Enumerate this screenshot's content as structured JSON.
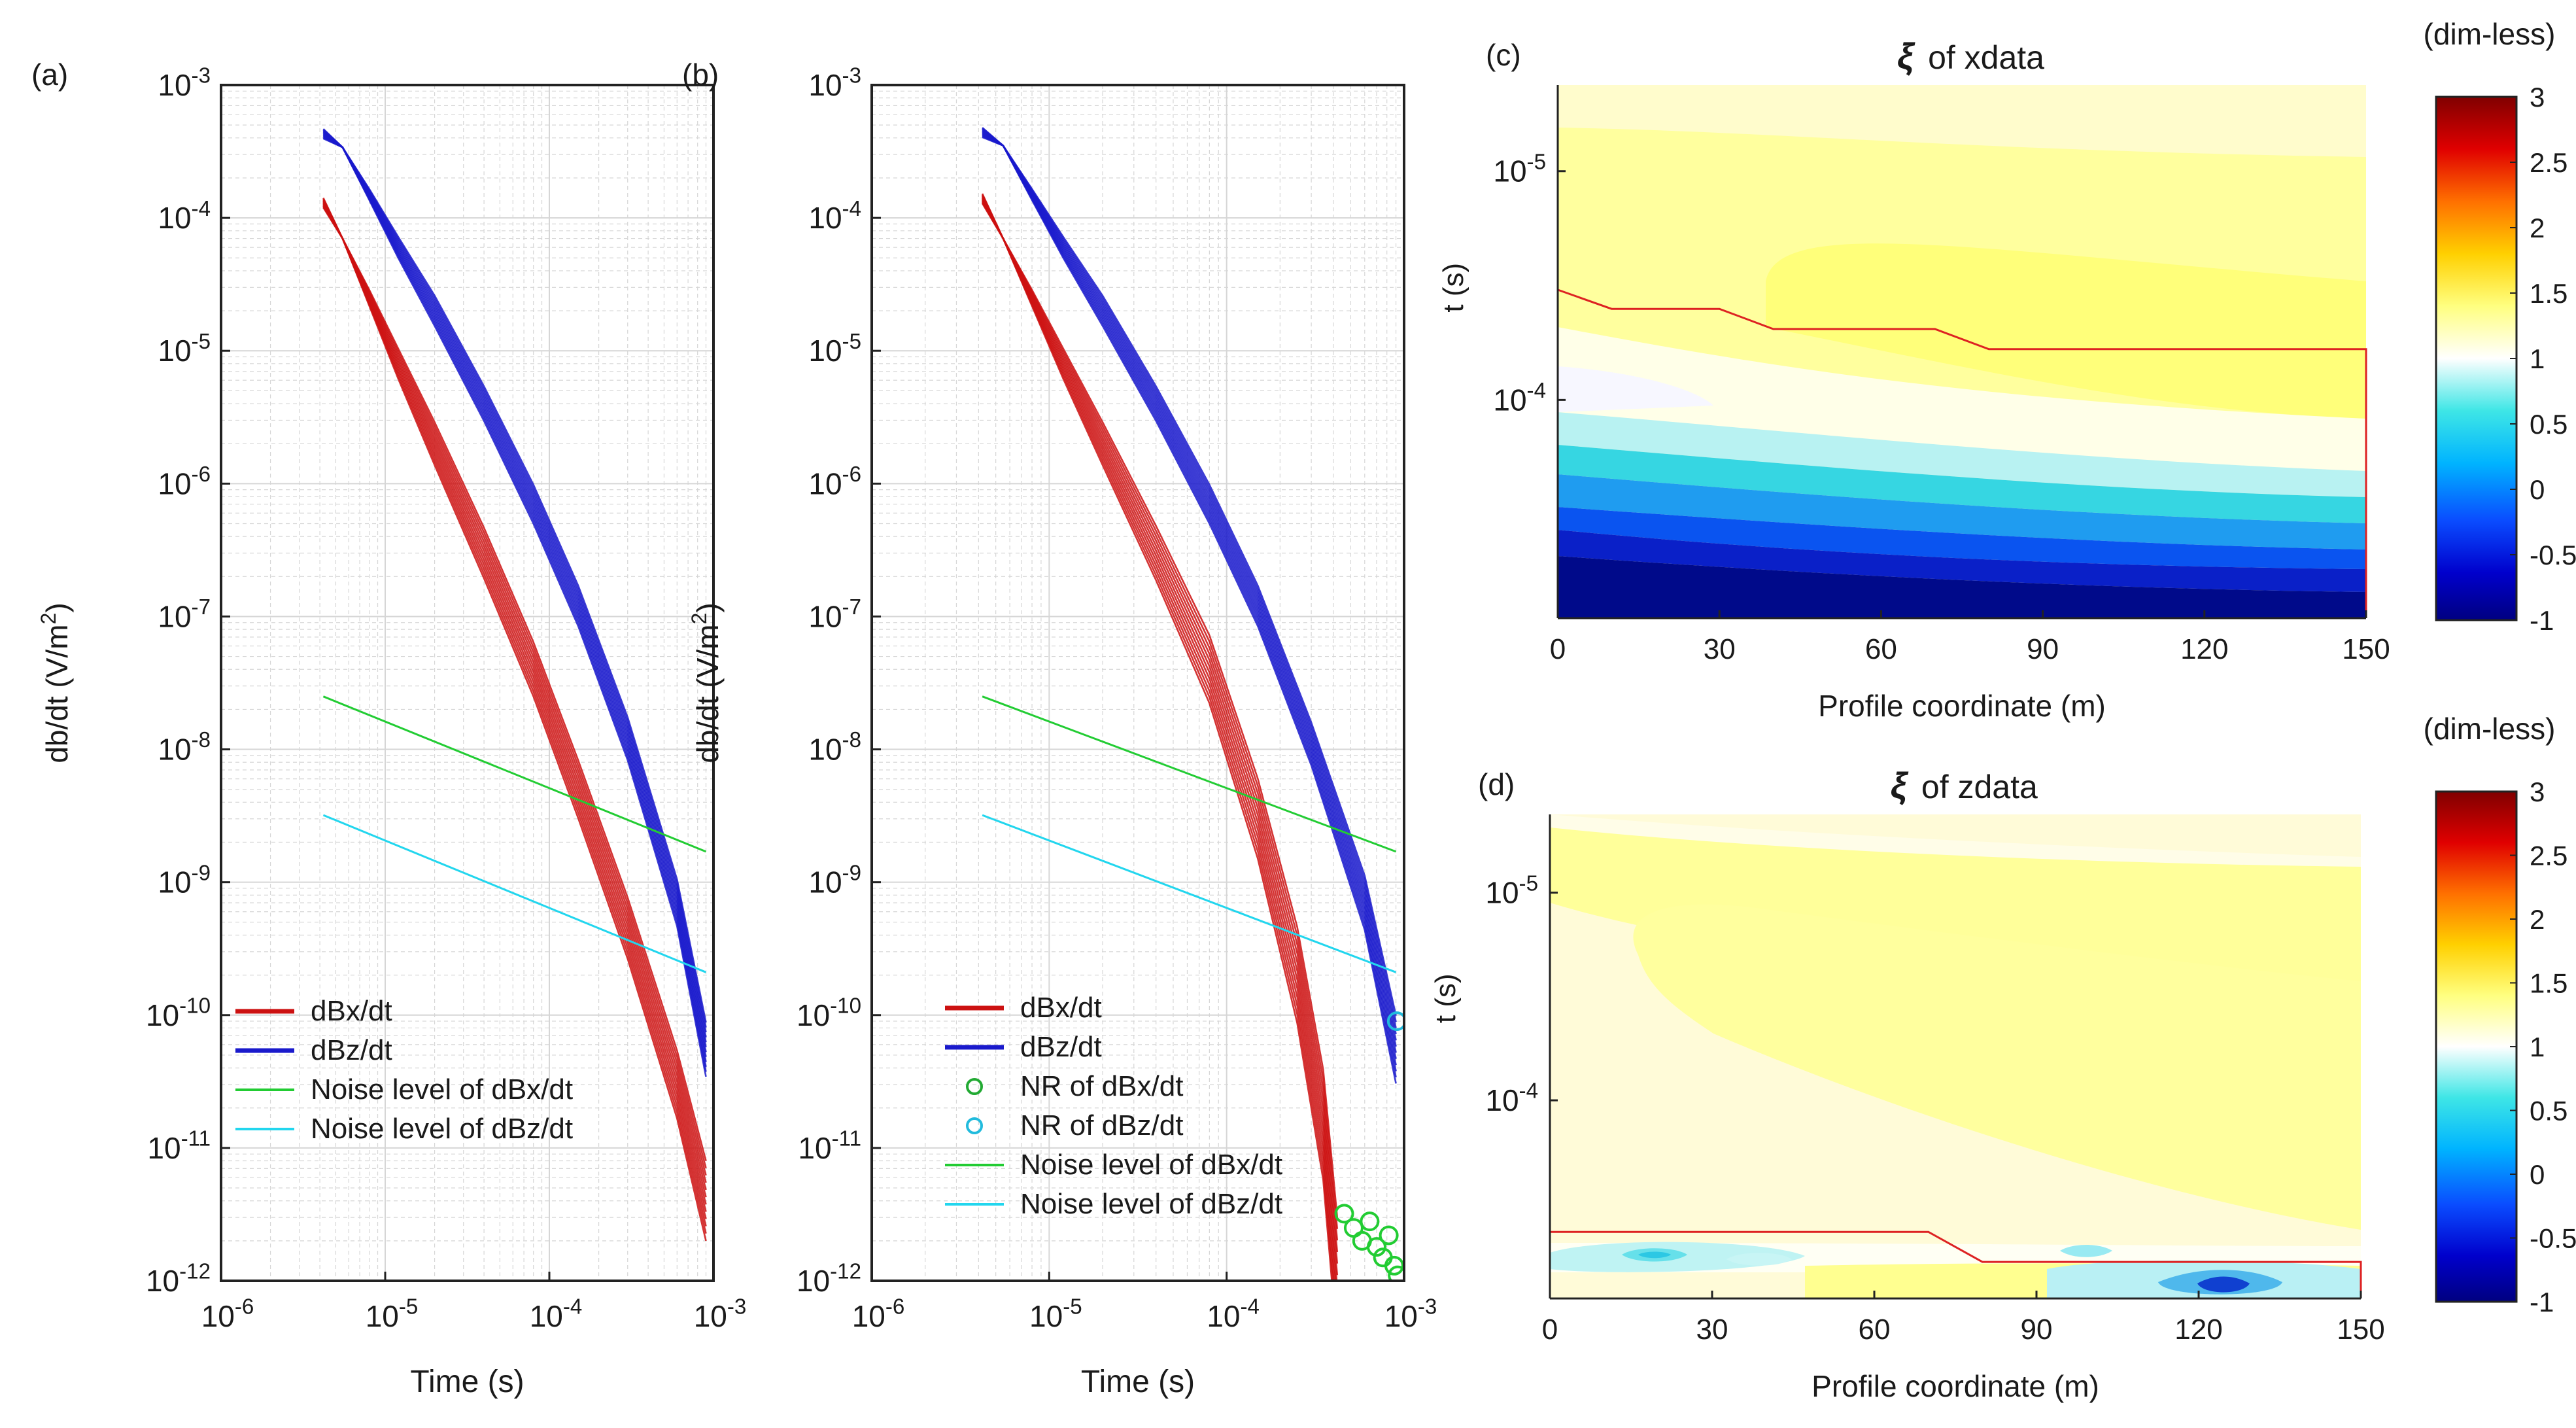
{
  "chart_data": [
    {
      "type": "line",
      "panel_label": "(a)",
      "xscale": "log",
      "yscale": "log",
      "xlim": [
        1e-06,
        0.001
      ],
      "ylim": [
        1e-12,
        0.001
      ],
      "xlabel": "Time (s)",
      "ylabel_main": "db/dt (V/m",
      "ylabel_sup": "2",
      "ylabel_end": ")",
      "x_ticks": [
        {
          "base": "10",
          "exp": "-6"
        },
        {
          "base": "10",
          "exp": "-5"
        },
        {
          "base": "10",
          "exp": "-4"
        },
        {
          "base": "10",
          "exp": "-3"
        }
      ],
      "y_ticks": [
        {
          "base": "10",
          "exp": "-12"
        },
        {
          "base": "10",
          "exp": "-11"
        },
        {
          "base": "10",
          "exp": "-10"
        },
        {
          "base": "10",
          "exp": "-9"
        },
        {
          "base": "10",
          "exp": "-8"
        },
        {
          "base": "10",
          "exp": "-7"
        },
        {
          "base": "10",
          "exp": "-6"
        },
        {
          "base": "10",
          "exp": "-5"
        },
        {
          "base": "10",
          "exp": "-4"
        },
        {
          "base": "10",
          "exp": "-3"
        }
      ],
      "grid": true,
      "series": [
        {
          "name": "dBx/dt",
          "kind": "bundle",
          "color": "#cc1111",
          "count": 12,
          "x": [
            4.2e-06,
            5.5e-06,
            8e-06,
            1.2e-05,
            2e-05,
            4e-05,
            8e-05,
            0.00015,
            0.0003,
            0.0006,
            0.0009
          ],
          "y": [
            0.00013,
            7e-05,
            2.5e-05,
            8e-06,
            2e-06,
            3e-07,
            4e-08,
            5e-09,
            4.5e-10,
            3e-11,
            4e-12
          ],
          "spread": [
            0.92,
            1.0,
            1.15,
            1.3,
            1.45,
            1.55,
            1.6,
            1.65,
            1.7,
            1.8,
            2.0
          ]
        },
        {
          "name": "dBz/dt",
          "kind": "bundle",
          "color": "#1a1acc",
          "count": 12,
          "x": [
            4.2e-06,
            5.5e-06,
            8e-06,
            1.2e-05,
            2e-05,
            4e-05,
            8e-05,
            0.00015,
            0.0003,
            0.0006,
            0.0009
          ],
          "y": [
            0.00043,
            0.00034,
            0.00015,
            6e-05,
            2e-05,
            4e-06,
            7e-07,
            1.2e-07,
            1.2e-08,
            7e-10,
            5.5e-11
          ],
          "spread": [
            0.92,
            1.0,
            1.1,
            1.2,
            1.3,
            1.35,
            1.4,
            1.42,
            1.45,
            1.5,
            1.6
          ]
        },
        {
          "name": "Noise level of dBx/dt",
          "kind": "line",
          "color": "#22cc33",
          "x": [
            4.2e-06,
            0.0009
          ],
          "y": [
            2.5e-08,
            1.7e-09
          ]
        },
        {
          "name": "Noise level of dBz/dt",
          "kind": "line",
          "color": "#22d6ee",
          "x": [
            4.2e-06,
            0.0009
          ],
          "y": [
            3.2e-09,
            2.1e-10
          ]
        }
      ],
      "legend": [
        {
          "label": "dBx/dt",
          "color": "#cc1111",
          "marker": "line"
        },
        {
          "label": "dBz/dt",
          "color": "#1a1acc",
          "marker": "line"
        },
        {
          "label": "Noise level of dBx/dt",
          "color": "#22cc33",
          "marker": "thin"
        },
        {
          "label": "Noise level of dBz/dt",
          "color": "#22d6ee",
          "marker": "thin"
        }
      ]
    },
    {
      "type": "line",
      "panel_label": "(b)",
      "xscale": "log",
      "yscale": "log",
      "xlim": [
        1e-06,
        0.001
      ],
      "ylim": [
        1e-12,
        0.001
      ],
      "xlabel": "Time (s)",
      "ylabel_main": "db/dt (V/m",
      "ylabel_sup": "2",
      "ylabel_end": ")",
      "x_ticks": [
        {
          "base": "10",
          "exp": "-6"
        },
        {
          "base": "10",
          "exp": "-5"
        },
        {
          "base": "10",
          "exp": "-4"
        },
        {
          "base": "10",
          "exp": "-3"
        }
      ],
      "y_ticks": [
        {
          "base": "10",
          "exp": "-12"
        },
        {
          "base": "10",
          "exp": "-11"
        },
        {
          "base": "10",
          "exp": "-10"
        },
        {
          "base": "10",
          "exp": "-9"
        },
        {
          "base": "10",
          "exp": "-8"
        },
        {
          "base": "10",
          "exp": "-7"
        },
        {
          "base": "10",
          "exp": "-6"
        },
        {
          "base": "10",
          "exp": "-5"
        },
        {
          "base": "10",
          "exp": "-4"
        },
        {
          "base": "10",
          "exp": "-3"
        }
      ],
      "grid": true,
      "series": [
        {
          "name": "dBx/dt",
          "kind": "bundle",
          "color": "#cc1111",
          "count": 12,
          "x": [
            4.2e-06,
            5.5e-06,
            8e-06,
            1.2e-05,
            2e-05,
            4e-05,
            8e-05,
            0.00015,
            0.00025,
            0.00035,
            0.00042
          ],
          "y": [
            0.00014,
            7e-05,
            2.5e-05,
            8e-06,
            2e-06,
            3e-07,
            4e-08,
            3e-09,
            2e-10,
            1.5e-11,
            1e-12
          ],
          "spread": [
            0.92,
            1.0,
            1.15,
            1.3,
            1.45,
            1.6,
            1.8,
            2.0,
            2.3,
            2.6,
            3.0
          ]
        },
        {
          "name": "dBz/dt",
          "kind": "bundle",
          "color": "#1a1acc",
          "count": 12,
          "x": [
            4.2e-06,
            5.5e-06,
            8e-06,
            1.2e-05,
            2e-05,
            4e-05,
            8e-05,
            0.00015,
            0.0003,
            0.0006,
            0.0009
          ],
          "y": [
            0.00044,
            0.00035,
            0.00015,
            6e-05,
            2e-05,
            4e-06,
            7e-07,
            1.2e-07,
            1.1e-08,
            7e-10,
            5.5e-11
          ],
          "spread": [
            0.92,
            1.0,
            1.1,
            1.2,
            1.3,
            1.35,
            1.4,
            1.42,
            1.45,
            1.6,
            1.8
          ]
        },
        {
          "name": "Noise level of dBx/dt",
          "kind": "line",
          "color": "#22cc33",
          "x": [
            4.2e-06,
            0.0009
          ],
          "y": [
            2.5e-08,
            1.7e-09
          ]
        },
        {
          "name": "Noise level of dBz/dt",
          "kind": "line",
          "color": "#22d6ee",
          "x": [
            4.2e-06,
            0.0009
          ],
          "y": [
            3.2e-09,
            2.1e-10
          ]
        },
        {
          "name": "NR of dBx/dt",
          "kind": "markers",
          "color": "#22cc33",
          "x": [
            0.00046,
            0.00052,
            0.00058,
            0.00064,
            0.0007,
            0.00076,
            0.00082,
            0.00088,
            0.00092
          ],
          "y": [
            3.2e-12,
            2.5e-12,
            2e-12,
            2.8e-12,
            1.8e-12,
            1.5e-12,
            2.2e-12,
            1.3e-12,
            1.1e-12
          ]
        },
        {
          "name": "NR of dBz/dt",
          "kind": "markers",
          "color": "#22bbdd",
          "x": [
            0.00091
          ],
          "y": [
            9e-11
          ]
        }
      ],
      "legend": [
        {
          "label": "dBx/dt",
          "color": "#cc1111",
          "marker": "line"
        },
        {
          "label": "dBz/dt",
          "color": "#1a1acc",
          "marker": "line"
        },
        {
          "label": "NR of dBx/dt",
          "color": "#22aa33",
          "marker": "circle"
        },
        {
          "label": "NR of dBz/dt",
          "color": "#22bbdd",
          "marker": "circle"
        },
        {
          "label": "Noise level of dBx/dt",
          "color": "#22cc33",
          "marker": "thin"
        },
        {
          "label": "Noise level of dBz/dt",
          "color": "#22d6ee",
          "marker": "thin"
        }
      ]
    },
    {
      "type": "heatmap",
      "panel_label": "(c)",
      "title_symbol": "ξ",
      "title_text": "of xdata",
      "xlabel": "Profile coordinate (m)",
      "ylabel": "t (s)",
      "xlim": [
        0,
        150
      ],
      "ylim_log_seconds": [
        4.2e-06,
        0.0009
      ],
      "y_reversed": true,
      "x_ticks": [
        "0",
        "30",
        "60",
        "90",
        "120",
        "150"
      ],
      "y_ticks": [
        {
          "base": "10",
          "exp": "-5",
          "t": 1e-05
        },
        {
          "base": "10",
          "exp": "-4",
          "t": 0.0001
        }
      ],
      "colorbar": {
        "unit": "(dim-less)",
        "range": [
          -1,
          3
        ],
        "ticks": [
          "-1",
          "-0.5",
          "0",
          "0.5",
          "1",
          "1.5",
          "2",
          "2.5",
          "3"
        ]
      },
      "boundary_line": {
        "color": "#dd2222",
        "x": [
          0,
          10,
          30,
          40,
          70,
          80,
          150,
          150
        ],
        "t": [
          3.3e-05,
          4e-05,
          4e-05,
          4.9e-05,
          4.9e-05,
          6e-05,
          6e-05,
          0.0009
        ]
      }
    },
    {
      "type": "heatmap",
      "panel_label": "(d)",
      "title_symbol": "ξ",
      "title_text": "of zdata",
      "xlabel": "Profile coordinate (m)",
      "ylabel": "t (s)",
      "xlim": [
        0,
        150
      ],
      "ylim_log_seconds": [
        4.2e-06,
        0.0009
      ],
      "y_reversed": true,
      "x_ticks": [
        "0",
        "30",
        "60",
        "90",
        "120",
        "150"
      ],
      "y_ticks": [
        {
          "base": "10",
          "exp": "-5",
          "t": 1e-05
        },
        {
          "base": "10",
          "exp": "-4",
          "t": 0.0001
        }
      ],
      "colorbar": {
        "unit": "(dim-less)",
        "range": [
          -1,
          3
        ],
        "ticks": [
          "-1",
          "-0.5",
          "0",
          "0.5",
          "1",
          "1.5",
          "2",
          "2.5",
          "3"
        ]
      },
      "boundary_line": {
        "color": "#dd2222",
        "x": [
          0,
          70,
          80,
          150,
          150
        ],
        "t": [
          0.00043,
          0.00043,
          0.0006,
          0.0006,
          0.0009
        ]
      }
    }
  ]
}
